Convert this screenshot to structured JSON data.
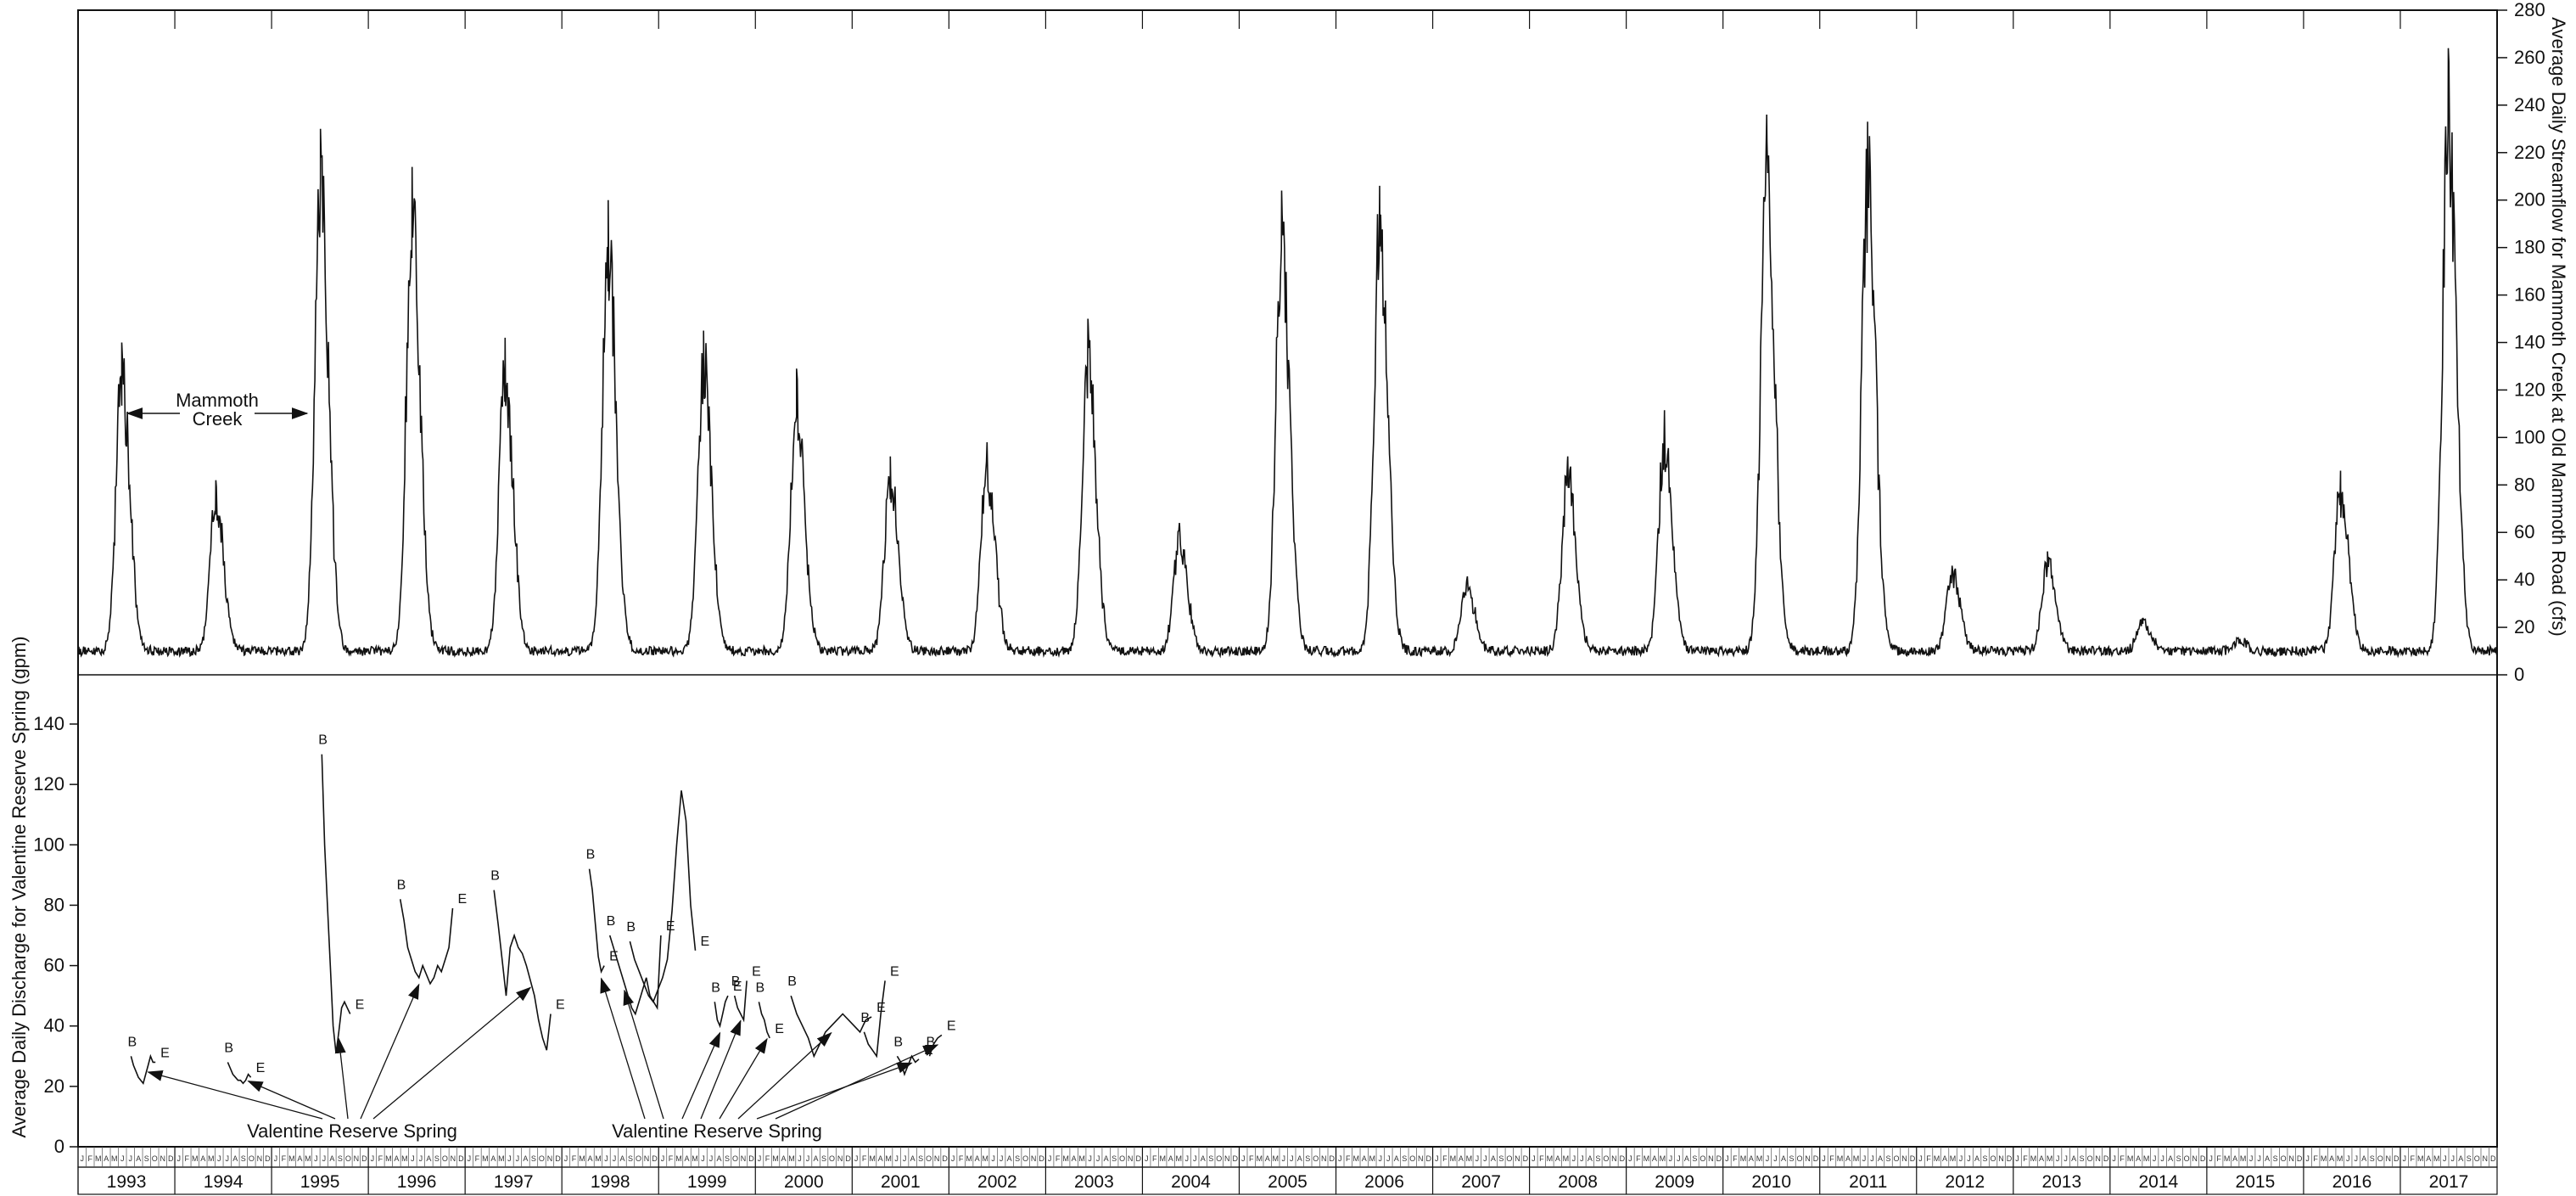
{
  "chart_data": [
    {
      "type": "line",
      "title": "",
      "ylabel": "Average Daily Streamflow for Mammoth Creek at Old Mammoth Road (cfs)",
      "y_axis_side": "right",
      "ylim": [
        0,
        280
      ],
      "yticks": [
        0,
        20,
        40,
        60,
        80,
        100,
        120,
        140,
        160,
        180,
        200,
        220,
        240,
        260,
        280
      ],
      "xlim": [
        "1993-01-01",
        "2017-12-31"
      ],
      "grid": false,
      "series": [
        {
          "name": "Mammoth Creek",
          "baseline": 10,
          "annual_peaks": [
            {
              "year": 1993,
              "date": "1993-06-15",
              "value": 140
            },
            {
              "year": 1994,
              "date": "1994-06-05",
              "value": 82
            },
            {
              "year": 1995,
              "date": "1995-07-05",
              "value": 230
            },
            {
              "year": 1996,
              "date": "1996-06-15",
              "value": 214
            },
            {
              "year": 1997,
              "date": "1997-06-01",
              "value": 142
            },
            {
              "year": 1998,
              "date": "1998-06-25",
              "value": 200
            },
            {
              "year": 1999,
              "date": "1999-06-20",
              "value": 145
            },
            {
              "year": 2000,
              "date": "2000-06-05",
              "value": 129
            },
            {
              "year": 2001,
              "date": "2001-05-25",
              "value": 92
            },
            {
              "year": 2002,
              "date": "2002-05-25",
              "value": 98
            },
            {
              "year": 2003,
              "date": "2003-06-10",
              "value": 150
            },
            {
              "year": 2004,
              "date": "2004-05-20",
              "value": 64
            },
            {
              "year": 2005,
              "date": "2005-06-10",
              "value": 204
            },
            {
              "year": 2006,
              "date": "2006-06-15",
              "value": 206
            },
            {
              "year": 2007,
              "date": "2007-05-10",
              "value": 40
            },
            {
              "year": 2008,
              "date": "2008-05-25",
              "value": 92
            },
            {
              "year": 2009,
              "date": "2009-05-25",
              "value": 110
            },
            {
              "year": 2010,
              "date": "2010-06-15",
              "value": 236
            },
            {
              "year": 2011,
              "date": "2011-07-01",
              "value": 233
            },
            {
              "year": 2012,
              "date": "2012-05-15",
              "value": 46
            },
            {
              "year": 2013,
              "date": "2013-05-10",
              "value": 52
            },
            {
              "year": 2014,
              "date": "2014-05-05",
              "value": 24
            },
            {
              "year": 2015,
              "date": "2015-05-01",
              "value": 15
            },
            {
              "year": 2016,
              "date": "2016-05-20",
              "value": 86
            },
            {
              "year": 2017,
              "date": "2017-07-01",
              "value": 264
            }
          ]
        }
      ]
    },
    {
      "type": "line",
      "title": "",
      "ylabel": "Average Daily Discharge for Valentine Reserve Spring (gpm)",
      "y_axis_side": "left",
      "ylim": [
        0,
        140
      ],
      "yticks": [
        0,
        20,
        40,
        60,
        80,
        100,
        120,
        140
      ],
      "xlim": [
        "1993-01-01",
        "2017-12-31"
      ],
      "grid": false,
      "series": [
        {
          "name": "Valentine Reserve Spring",
          "segments": [
            {
              "begin_date": "1993-07-20",
              "end_date": "1993-10-20",
              "values": [
                30,
                27,
                25,
                23,
                22,
                21,
                24,
                27,
                30,
                28,
                28
              ]
            },
            {
              "begin_date": "1994-07-20",
              "end_date": "1994-10-15",
              "values": [
                28,
                26,
                24,
                23,
                22,
                22,
                21,
                22,
                24,
                23
              ]
            },
            {
              "begin_date": "1995-07-10",
              "end_date": "1995-10-25",
              "values": [
                130,
                100,
                80,
                60,
                40,
                31,
                38,
                46,
                48,
                46,
                44
              ]
            },
            {
              "begin_date": "1996-05-01",
              "end_date": "1996-11-15",
              "values": [
                82,
                75,
                66,
                62,
                58,
                56,
                60,
                57,
                54,
                56,
                60,
                58,
                62,
                66,
                79
              ]
            },
            {
              "begin_date": "1997-04-20",
              "end_date": "1997-11-20",
              "values": [
                85,
                74,
                62,
                50,
                66,
                70,
                66,
                64,
                60,
                55,
                50,
                42,
                36,
                32,
                44
              ]
            },
            {
              "begin_date": "1998-04-15",
              "end_date": "1998-06-10",
              "values": [
                92,
                85,
                74,
                63,
                58,
                60
              ]
            },
            {
              "begin_date": "1998-07-01",
              "end_date": "1999-01-10",
              "values": [
                70,
                66,
                62,
                58,
                54,
                50,
                46,
                44,
                48,
                52,
                56,
                50,
                48,
                46,
                70
              ]
            },
            {
              "begin_date": "1998-09-15",
              "end_date": "1999-05-20",
              "values": [
                68,
                62,
                58,
                54,
                50,
                48,
                52,
                56,
                62,
                78,
                100,
                118,
                108,
                80,
                65
              ]
            },
            {
              "begin_date": "1999-08-01",
              "end_date": "1999-09-20",
              "values": [
                48,
                42,
                40,
                44,
                48,
                50
              ]
            },
            {
              "begin_date": "1999-10-15",
              "end_date": "1999-11-30",
              "values": [
                50,
                46,
                44,
                42,
                55
              ]
            },
            {
              "begin_date": "2000-01-15",
              "end_date": "2000-02-25",
              "values": [
                48,
                44,
                42,
                38,
                36
              ]
            },
            {
              "begin_date": "2000-05-15",
              "end_date": "2001-03-15",
              "values": [
                50,
                44,
                40,
                36,
                30,
                34,
                38,
                40,
                42,
                44,
                42,
                40,
                38,
                42,
                43
              ]
            },
            {
              "begin_date": "2001-02-15",
              "end_date": "2001-05-05",
              "values": [
                38,
                34,
                32,
                30,
                44,
                55
              ]
            },
            {
              "begin_date": "2001-06-20",
              "end_date": "2001-09-10",
              "values": [
                30,
                28,
                24,
                27,
                30,
                28,
                29
              ]
            },
            {
              "begin_date": "2001-10-20",
              "end_date": "2001-12-05",
              "values": [
                30,
                34,
                36,
                37
              ]
            }
          ]
        }
      ],
      "segment_markers": {
        "begin": "B",
        "end": "E"
      }
    }
  ],
  "annotations": {
    "mammoth_label_line1": "Mammoth",
    "mammoth_label_line2": "Creek",
    "spring_label_left": "Valentine Reserve Spring",
    "spring_label_right": "Valentine Reserve Spring"
  },
  "x_axis": {
    "years": [
      "1993",
      "1994",
      "1995",
      "1996",
      "1997",
      "1998",
      "1999",
      "2000",
      "2001",
      "2002",
      "2003",
      "2004",
      "2005",
      "2006",
      "2007",
      "2008",
      "2009",
      "2010",
      "2011",
      "2012",
      "2013",
      "2014",
      "2015",
      "2016",
      "2017"
    ],
    "month_letters": [
      "J",
      "F",
      "M",
      "A",
      "M",
      "J",
      "J",
      "A",
      "S",
      "O",
      "N",
      "D"
    ]
  }
}
